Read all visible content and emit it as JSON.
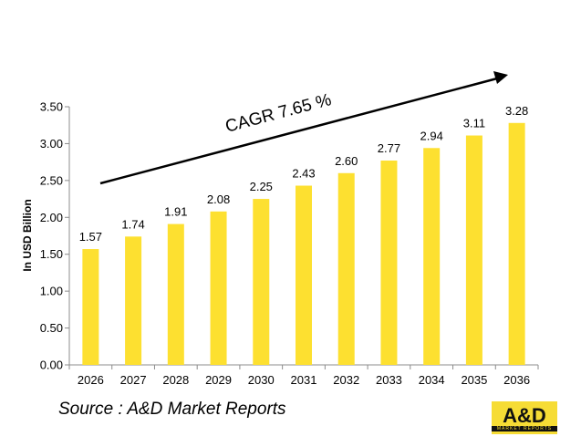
{
  "chart_data": {
    "type": "bar",
    "categories": [
      "2026",
      "2027",
      "2028",
      "2029",
      "2030",
      "2031",
      "2032",
      "2033",
      "2034",
      "2035",
      "2036"
    ],
    "values": [
      1.57,
      1.74,
      1.91,
      2.08,
      2.25,
      2.43,
      2.6,
      2.77,
      2.94,
      3.11,
      3.28
    ],
    "value_labels": [
      "1.57",
      "1.74",
      "1.91",
      "2.08",
      "2.25",
      "2.43",
      "2.60",
      "2.77",
      "2.94",
      "3.11",
      "3.28"
    ],
    "ylabel": "In USD Billion",
    "xlabel": "",
    "ylim": [
      0,
      3.5
    ],
    "yticks": [
      "0.00",
      "0.50",
      "1.00",
      "1.50",
      "2.00",
      "2.50",
      "3.00",
      "3.50"
    ],
    "grid": false,
    "bar_color": "#fde030",
    "annotation": "CAGR  7.65 %"
  },
  "footer": {
    "source": "Source : A&D Market Reports",
    "logo_text": "A&D",
    "logo_subtext": "MARKET REPORTS"
  },
  "colors": {
    "logo_background": "#f6dc35"
  }
}
